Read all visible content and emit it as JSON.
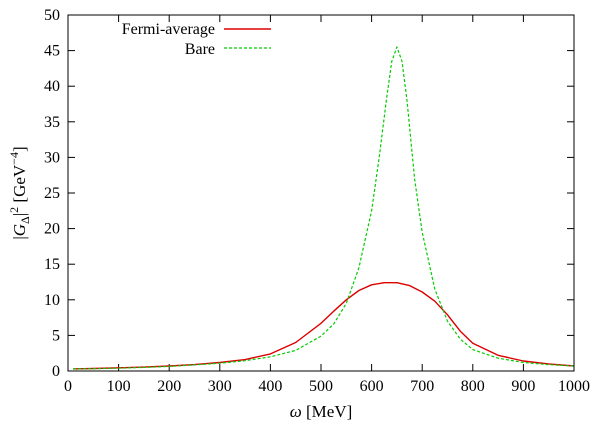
{
  "chart_data": {
    "type": "line",
    "xlabel": "ω [MeV]",
    "ylabel": "|G_Δ|² [GeV⁻⁴]",
    "xlim": [
      0,
      1000
    ],
    "ylim": [
      0,
      50
    ],
    "xticks": [
      0,
      100,
      200,
      300,
      400,
      500,
      600,
      700,
      800,
      900,
      1000
    ],
    "yticks": [
      0,
      5,
      10,
      15,
      20,
      25,
      30,
      35,
      40,
      45,
      50
    ],
    "grid": false,
    "legend_position": "top-left",
    "series": [
      {
        "name": "Fermi-average",
        "color": "#dd0000",
        "style": "solid",
        "x": [
          10,
          50,
          100,
          150,
          200,
          250,
          300,
          350,
          400,
          450,
          500,
          525,
          550,
          575,
          600,
          625,
          650,
          675,
          700,
          725,
          750,
          775,
          800,
          850,
          900,
          950,
          1000
        ],
        "y": [
          0.3,
          0.35,
          0.45,
          0.55,
          0.7,
          0.9,
          1.2,
          1.6,
          2.4,
          4.0,
          6.7,
          8.4,
          10.0,
          11.3,
          12.1,
          12.4,
          12.4,
          12.0,
          11.1,
          9.8,
          7.9,
          5.6,
          3.9,
          2.2,
          1.4,
          1.0,
          0.7
        ]
      },
      {
        "name": "Bare",
        "color": "#00cc00",
        "style": "dashed",
        "x": [
          10,
          50,
          100,
          150,
          200,
          250,
          300,
          350,
          400,
          450,
          500,
          525,
          550,
          575,
          600,
          615,
          630,
          640,
          650,
          660,
          670,
          685,
          700,
          725,
          750,
          775,
          800,
          850,
          900,
          950,
          1000
        ],
        "y": [
          0.3,
          0.33,
          0.4,
          0.5,
          0.65,
          0.85,
          1.1,
          1.45,
          2.0,
          2.9,
          4.9,
          6.6,
          9.5,
          14.5,
          22.5,
          30.0,
          38.5,
          43.5,
          45.5,
          43.5,
          38.0,
          27.0,
          19.5,
          11.5,
          7.0,
          4.5,
          3.0,
          1.8,
          1.2,
          0.9,
          0.7
        ]
      }
    ]
  }
}
